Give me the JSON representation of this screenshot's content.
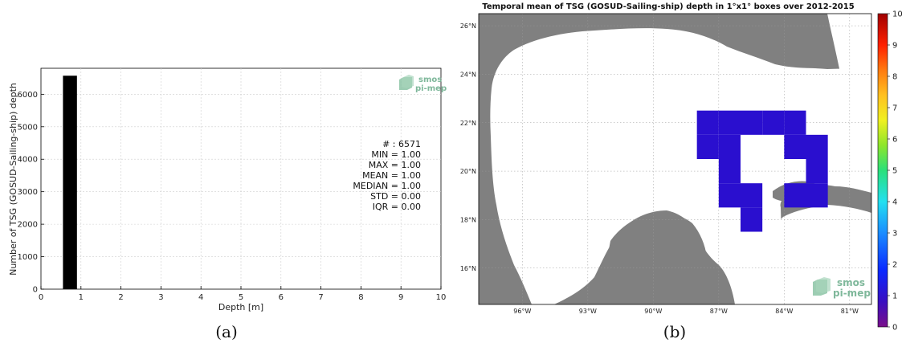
{
  "chart_data": [
    {
      "type": "bar",
      "panel_label": "(a)",
      "xlabel": "Depth [m]",
      "ylabel": "Number of TSG (GOSUD-Sailing-ship) depth",
      "xlim": [
        0,
        10
      ],
      "ylim": [
        0,
        6800
      ],
      "xticks": [
        "0",
        "1",
        "2",
        "3",
        "4",
        "5",
        "6",
        "7",
        "8",
        "9",
        "10"
      ],
      "yticks": [
        "0",
        "1000",
        "2000",
        "3000",
        "4000",
        "5000",
        "6000"
      ],
      "grid": true,
      "bars": [
        {
          "x_start": 0.55,
          "x_end": 0.9,
          "value": 6571
        }
      ],
      "stats": [
        "# : 6571",
        "MIN = 1.00",
        "MAX =  1.00",
        "MEAN = 1.00",
        "MEDIAN = 1.00",
        "STD = 0.00",
        "IQR = 0.00"
      ],
      "logo": {
        "line1": "smos",
        "line2": "pi-mep"
      }
    },
    {
      "type": "heatmap",
      "panel_label": "(b)",
      "title": "Temporal mean of TSG (GOSUD-Sailing-ship) depth in 1°x1° boxes over 2012-2015",
      "lon_range": [
        -98,
        -80
      ],
      "lat_range": [
        14.5,
        26.5
      ],
      "lon_ticks": [
        "96°W",
        "93°W",
        "90°W",
        "87°W",
        "84°W",
        "81°W"
      ],
      "lon_tick_values": [
        -96,
        -93,
        -90,
        -87,
        -84,
        -81
      ],
      "lat_ticks": [
        "16°N",
        "18°N",
        "20°N",
        "22°N",
        "24°N",
        "26°N"
      ],
      "lat_tick_values": [
        16,
        18,
        20,
        22,
        24,
        26
      ],
      "colorbar": {
        "min": 0,
        "max": 10,
        "ticks": [
          "0",
          "1",
          "2",
          "3",
          "4",
          "5",
          "6",
          "7",
          "8",
          "9",
          "10"
        ]
      },
      "cells_value": 1,
      "cells": [
        {
          "lon": -88,
          "lat": 21.5
        },
        {
          "lon": -87,
          "lat": 21.5
        },
        {
          "lon": -86,
          "lat": 21.5
        },
        {
          "lon": -85,
          "lat": 21.5
        },
        {
          "lon": -84,
          "lat": 21.5
        },
        {
          "lon": -88,
          "lat": 20.5
        },
        {
          "lon": -87,
          "lat": 20.5
        },
        {
          "lon": -84,
          "lat": 20.5
        },
        {
          "lon": -83,
          "lat": 20.5
        },
        {
          "lon": -87,
          "lat": 19.5
        },
        {
          "lon": -83,
          "lat": 19.5
        },
        {
          "lon": -87,
          "lat": 18.5
        },
        {
          "lon": -86,
          "lat": 18.5
        },
        {
          "lon": -84,
          "lat": 18.5
        },
        {
          "lon": -83,
          "lat": 18.5
        },
        {
          "lon": -86,
          "lat": 17.5
        }
      ],
      "colors": {
        "cell": "#2a0fcf",
        "land": "#808080",
        "ocean": "#ffffff"
      },
      "logo": {
        "line1": "smos",
        "line2": "pi-mep"
      }
    }
  ]
}
